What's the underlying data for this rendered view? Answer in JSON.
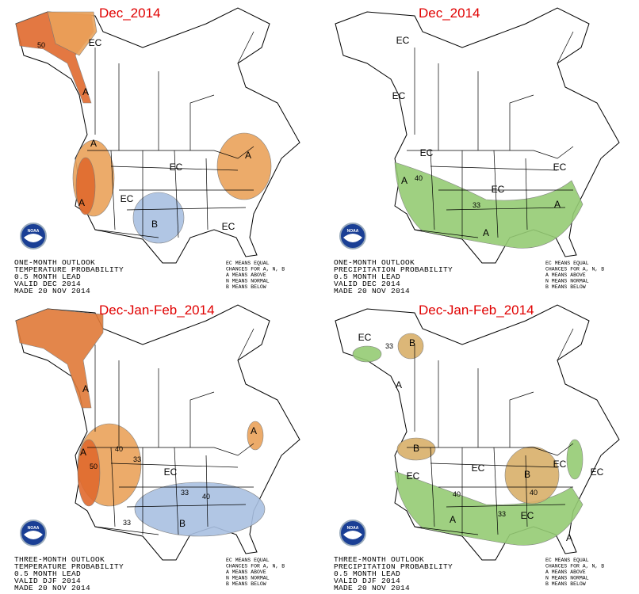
{
  "legend": [
    "EC MEANS EQUAL",
    "CHANCES FOR A, N, B",
    "A MEANS ABOVE",
    "N MEANS NORMAL",
    "B MEANS BELOW"
  ],
  "logo": "NOAA",
  "panels": [
    {
      "title": "Dec_2014",
      "caption": [
        "ONE-MONTH OUTLOOK",
        "TEMPERATURE PROBABILITY",
        "0.5 MONTH LEAD",
        "VALID DEC 2014",
        "MADE 20 NOV 2014"
      ],
      "labels": [
        "EC",
        "50",
        "A",
        "A",
        "A",
        "EC",
        "EC",
        "B",
        "A",
        "EC"
      ]
    },
    {
      "title": "Dec_2014",
      "caption": [
        "ONE-MONTH OUTLOOK",
        "PRECIPITATION PROBABILITY",
        "0.5 MONTH LEAD",
        "VALID DEC 2014",
        "MADE 20 NOV 2014"
      ],
      "labels": [
        "EC",
        "EC",
        "EC",
        "A",
        "40",
        "EC",
        "EC",
        "33",
        "A",
        "A"
      ]
    },
    {
      "title": "Dec-Jan-Feb_2014",
      "caption": [
        "THREE-MONTH OUTLOOK",
        "TEMPERATURE PROBABILITY",
        "0.5 MONTH LEAD",
        "VALID DJF 2014",
        "MADE 20 NOV 2014"
      ],
      "labels": [
        "A",
        "A",
        "40",
        "50",
        "33",
        "EC",
        "A",
        "33",
        "40",
        "33",
        "B"
      ]
    },
    {
      "title": "Dec-Jan-Feb_2014",
      "caption": [
        "THREE-MONTH OUTLOOK",
        "PRECIPITATION PROBABILITY",
        "0.5 MONTH LEAD",
        "VALID DJF 2014",
        "MADE 20 NOV 2014"
      ],
      "labels": [
        "EC",
        "33",
        "B",
        "A",
        "B",
        "EC",
        "EC",
        "EC",
        "EC",
        "40",
        "33",
        "A",
        "B",
        "40",
        "EC",
        "A"
      ]
    }
  ]
}
